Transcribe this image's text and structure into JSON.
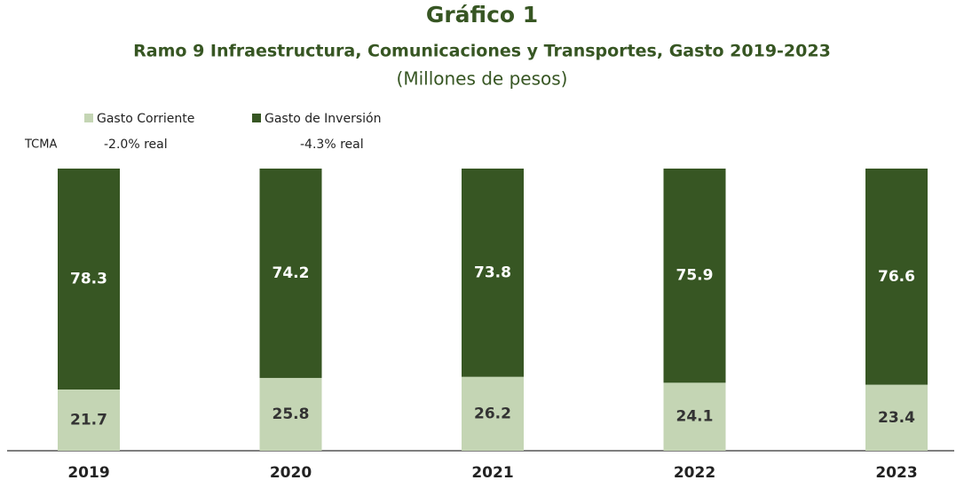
{
  "chart_data": {
    "type": "stacked_bar",
    "title": "Gráfico 1",
    "subtitle": "Ramo 9 Infraestructura, Comunicaciones y Transportes, Gasto 2019-2023",
    "unit_label": "(Millones de pesos)",
    "annotations": [
      "TCMA",
      "-2.0% real",
      "-4.3% real"
    ],
    "categories": [
      "2019",
      "2020",
      "2021",
      "2022",
      "2023"
    ],
    "series": [
      {
        "name": "Gasto Corriente",
        "color": "#c4d5b4",
        "values": [
          21.7,
          25.8,
          26.2,
          24.1,
          23.4
        ]
      },
      {
        "name": "Gasto de Inversión",
        "color": "#375623",
        "values": [
          78.3,
          74.2,
          73.8,
          75.9,
          76.6
        ]
      }
    ]
  }
}
